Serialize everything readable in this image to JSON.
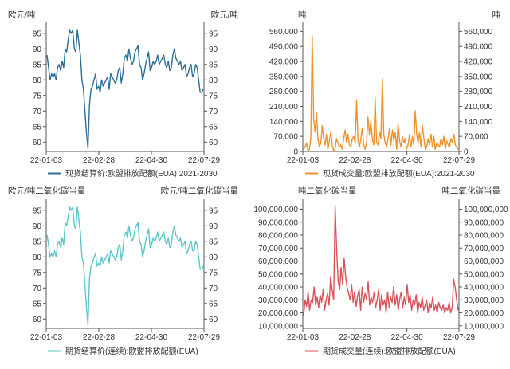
{
  "chart_data": [
    {
      "type": "line",
      "id": "c1",
      "left_unit": "欧元/吨",
      "right_unit": "欧元/吨",
      "series_name": "现货结算价:欧盟排放配额(EUA):2021-2030",
      "color": "#2b6f96",
      "x_ticks": [
        "22-01-03",
        "22-02-28",
        "22-04-30",
        "22-07-29"
      ],
      "y_ticks": [
        "95",
        "90",
        "85",
        "80",
        "75",
        "70",
        "65",
        "60"
      ],
      "ylim": [
        57,
        97
      ],
      "values": [
        88,
        84,
        80,
        82,
        81,
        82,
        80,
        84,
        85,
        83,
        86,
        84,
        90,
        89,
        93,
        96,
        95,
        96,
        90,
        89,
        96,
        92,
        88,
        80,
        77,
        70,
        63,
        58,
        72,
        77,
        78,
        80,
        82,
        77,
        78,
        76,
        80,
        78,
        79,
        80,
        81,
        77,
        82,
        81,
        80,
        79,
        80,
        83,
        84,
        79,
        82,
        87,
        88,
        86,
        90,
        87,
        85,
        86,
        89,
        90,
        91,
        85,
        84,
        80,
        82,
        85,
        87,
        89,
        83,
        84,
        86,
        85,
        86,
        88,
        85,
        86,
        87,
        88,
        85,
        84,
        86,
        83,
        84,
        88,
        90,
        87,
        86,
        85,
        86,
        83,
        84,
        85,
        81,
        82,
        84,
        85,
        81,
        82,
        85,
        84,
        80,
        76,
        76,
        77
      ]
    },
    {
      "type": "line",
      "id": "c2",
      "left_unit": "吨",
      "right_unit": "吨",
      "series_name": "现货成交量:欧盟排放配额(EUA):2021-2030",
      "color": "#f0922b",
      "x_ticks": [
        "22-01-03",
        "22-02-28",
        "22-04-30",
        "22-07-29"
      ],
      "y_ticks": [
        "560,000",
        "490,000",
        "420,000",
        "350,000",
        "280,000",
        "210,000",
        "140,000",
        "70,000",
        "0"
      ],
      "ylim": [
        0,
        580000
      ],
      "values": [
        10000,
        20000,
        40000,
        5000,
        8000,
        60000,
        540000,
        150000,
        90000,
        180000,
        60000,
        20000,
        40000,
        120000,
        60000,
        30000,
        80000,
        10000,
        50000,
        90000,
        30000,
        5000,
        10000,
        60000,
        40000,
        20000,
        30000,
        10000,
        60000,
        100000,
        40000,
        80000,
        30000,
        20000,
        60000,
        70000,
        40000,
        240000,
        50000,
        20000,
        60000,
        110000,
        30000,
        10000,
        40000,
        160000,
        80000,
        140000,
        60000,
        30000,
        250000,
        40000,
        30000,
        90000,
        60000,
        340000,
        80000,
        40000,
        20000,
        60000,
        110000,
        30000,
        100000,
        50000,
        90000,
        10000,
        130000,
        50000,
        20000,
        70000,
        40000,
        60000,
        10000,
        30000,
        80000,
        20000,
        70000,
        30000,
        190000,
        80000,
        40000,
        90000,
        20000,
        120000,
        60000,
        10000,
        20000,
        60000,
        30000,
        80000,
        20000,
        70000,
        10000,
        40000,
        30000,
        20000,
        60000,
        30000,
        70000,
        10000,
        50000,
        30000,
        20000,
        60000,
        40000,
        80000,
        30000,
        20000,
        10000
      ]
    },
    {
      "type": "line",
      "id": "c3",
      "left_unit": "欧元/吨二氧化碳当量",
      "right_unit": "欧元/吨二氧化碳当量",
      "series_name": "期货结算价(连续):欧盟排放配额(EUA)",
      "color": "#5bc6c8",
      "x_ticks": [
        "22-01-03",
        "22-02-28",
        "22-04-30",
        "22-07-29"
      ],
      "y_ticks": [
        "95",
        "90",
        "85",
        "80",
        "75",
        "70",
        "65",
        "60"
      ],
      "ylim": [
        57,
        97
      ],
      "values": [
        87,
        84,
        80,
        81,
        80,
        82,
        80,
        84,
        85,
        83,
        86,
        84,
        91,
        90,
        93,
        96,
        95,
        96,
        90,
        89,
        96,
        92,
        88,
        80,
        78,
        71,
        64,
        58,
        73,
        77,
        78,
        80,
        81,
        77,
        78,
        77,
        80,
        78,
        79,
        80,
        81,
        78,
        82,
        81,
        80,
        79,
        80,
        83,
        84,
        79,
        82,
        87,
        88,
        86,
        90,
        87,
        85,
        86,
        89,
        90,
        91,
        85,
        84,
        80,
        82,
        85,
        87,
        89,
        83,
        84,
        86,
        85,
        86,
        88,
        85,
        86,
        87,
        88,
        85,
        84,
        86,
        83,
        84,
        88,
        90,
        87,
        86,
        85,
        86,
        83,
        84,
        85,
        81,
        82,
        84,
        85,
        82,
        82,
        85,
        84,
        80,
        76,
        76,
        77
      ]
    },
    {
      "type": "line",
      "id": "c4",
      "left_unit": "吨二氧化碳当量",
      "right_unit": "吨二氧化碳当量",
      "series_name": "期货成交量(连续):欧盟排放配额(EUA)",
      "color": "#d9525a",
      "x_ticks": [
        "22-01-03",
        "22-02-28",
        "22-04-30",
        "22-07-29"
      ],
      "y_ticks": [
        "100,000,000",
        "90,000,000",
        "80,000,000",
        "70,000,000",
        "60,000,000",
        "50,000,000",
        "40,000,000",
        "30,000,000",
        "20,000,000",
        "10,000,000"
      ],
      "ylim": [
        8000000,
        104000000
      ],
      "values": [
        18000000,
        30000000,
        25000000,
        36000000,
        22000000,
        30000000,
        28000000,
        40000000,
        26000000,
        32000000,
        24000000,
        34000000,
        28000000,
        38000000,
        22000000,
        30000000,
        35000000,
        26000000,
        48000000,
        38000000,
        30000000,
        102000000,
        70000000,
        45000000,
        38000000,
        55000000,
        42000000,
        62000000,
        48000000,
        40000000,
        35000000,
        30000000,
        42000000,
        28000000,
        36000000,
        25000000,
        33000000,
        38000000,
        22000000,
        40000000,
        28000000,
        35000000,
        30000000,
        44000000,
        26000000,
        32000000,
        28000000,
        36000000,
        24000000,
        30000000,
        38000000,
        22000000,
        34000000,
        26000000,
        30000000,
        20000000,
        36000000,
        24000000,
        32000000,
        28000000,
        40000000,
        26000000,
        34000000,
        22000000,
        30000000,
        36000000,
        24000000,
        32000000,
        26000000,
        42000000,
        28000000,
        34000000,
        22000000,
        30000000,
        26000000,
        34000000,
        20000000,
        28000000,
        24000000,
        32000000,
        22000000,
        26000000,
        30000000,
        20000000,
        28000000,
        24000000,
        32000000,
        22000000,
        26000000,
        20000000,
        28000000,
        24000000,
        22000000,
        26000000,
        20000000,
        24000000,
        22000000,
        28000000,
        20000000,
        24000000,
        46000000,
        40000000,
        30000000,
        22000000
      ]
    }
  ]
}
